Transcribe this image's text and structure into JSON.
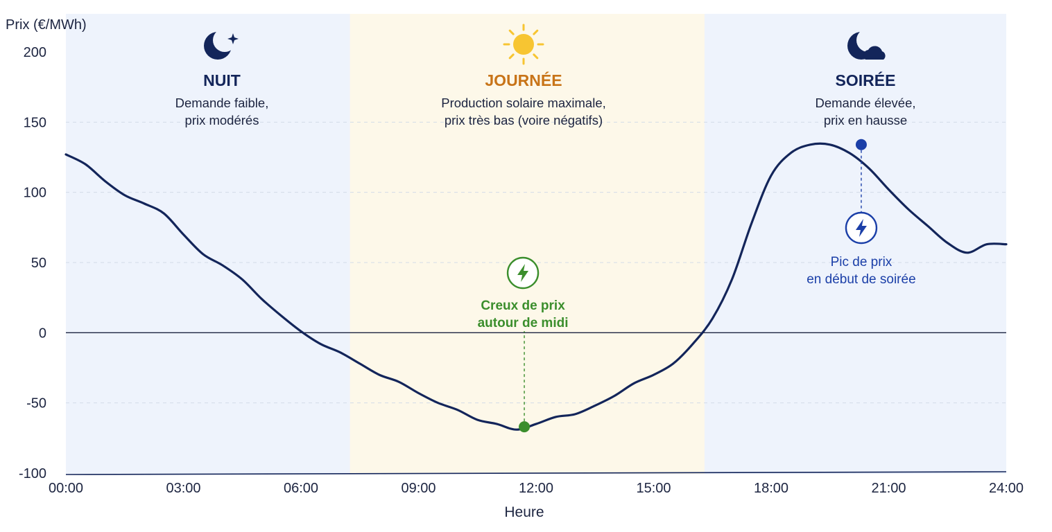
{
  "chart_data": {
    "type": "line",
    "title": "",
    "xlabel": "Heure",
    "ylabel": "Prix (€/MWh)",
    "ylim": [
      -100,
      200
    ],
    "xlim": [
      0,
      24
    ],
    "y_ticks": [
      "200",
      "150",
      "100",
      "50",
      "0",
      "-50",
      "-100"
    ],
    "x_ticks": [
      "00:00",
      "03:00",
      "06:00",
      "09:00",
      "12:00",
      "15:00",
      "18:00",
      "21:00",
      "24:00"
    ],
    "grid": "horizontal dashed",
    "series": [
      {
        "name": "",
        "color": "#13255a",
        "x": [
          0,
          0.5,
          1,
          1.5,
          2,
          2.5,
          3,
          3.5,
          4,
          4.5,
          5,
          5.5,
          6,
          6.5,
          7,
          7.5,
          8,
          8.5,
          9,
          9.5,
          10,
          10.5,
          11,
          11.5,
          12,
          12.5,
          13,
          13.5,
          14,
          14.5,
          15,
          15.5,
          16,
          16.5,
          17,
          17.5,
          18,
          18.5,
          19,
          19.5,
          20,
          20.5,
          21,
          21.5,
          22,
          22.5,
          23,
          23.5,
          24
        ],
        "values": [
          127,
          120,
          108,
          98,
          92,
          85,
          70,
          56,
          48,
          38,
          24,
          12,
          1,
          -8,
          -14,
          -22,
          -30,
          -35,
          -43,
          -50,
          -55,
          -62,
          -65,
          -69,
          -65,
          -60,
          -58,
          -52,
          -45,
          -36,
          -30,
          -22,
          -8,
          10,
          38,
          78,
          112,
          128,
          134,
          134,
          128,
          117,
          102,
          88,
          76,
          64,
          57,
          63,
          63
        ]
      }
    ],
    "zones": [
      {
        "x_range": [
          0,
          7.25
        ],
        "color": "#eef3fc",
        "title": "NUIT",
        "title_color": "#13255a",
        "line1": "Demande faible,",
        "line2": "prix modérés",
        "icon": "moon-star-icon"
      },
      {
        "x_range": [
          7.25,
          16.3
        ],
        "color": "#fdf8e9",
        "title": "JOURNÉE",
        "title_color": "#c87418",
        "line1": "Production solaire maximale,",
        "line2": "prix très bas (voire négatifs)",
        "icon": "sun-icon"
      },
      {
        "x_range": [
          16.3,
          24
        ],
        "color": "#eef3fc",
        "title": "SOIRÉE",
        "title_color": "#13255a",
        "line1": "Demande élevée,",
        "line2": "prix en hausse",
        "icon": "moon-cloud-icon"
      }
    ],
    "annotations": [
      {
        "x": 11.7,
        "y": -67,
        "line1": "Creux de prix",
        "line2": "autour de midi",
        "color": "#3b8e2c",
        "icon": "lightning-icon"
      },
      {
        "x": 20.3,
        "y": 134,
        "line1": "Pic de prix",
        "line2": "en début de soirée",
        "color": "#1b3fa8",
        "icon": "lightning-icon"
      }
    ]
  }
}
